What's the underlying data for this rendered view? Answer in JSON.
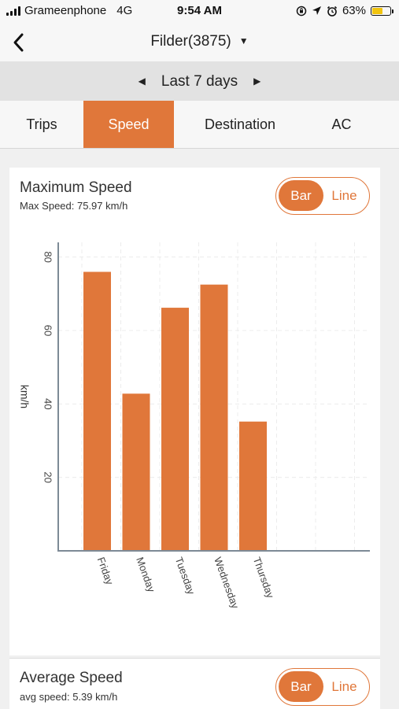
{
  "status": {
    "carrier": "Grameenphone",
    "network": "4G",
    "time": "9:54 AM",
    "battery_text": "63%",
    "battery_level": 0.63,
    "battery_color": "#f1c40f"
  },
  "nav": {
    "back_icon": "chevron-left-icon",
    "title": "Filder(3875)",
    "dropdown_icon": "caret-down-icon"
  },
  "date_range": {
    "label": "Last 7 days",
    "prev_icon": "caret-left-icon",
    "next_icon": "caret-right-icon"
  },
  "tabs": [
    {
      "label": "Trips",
      "active": false
    },
    {
      "label": "Speed",
      "active": true
    },
    {
      "label": "Destination",
      "active": false
    },
    {
      "label": "AC",
      "active": false
    }
  ],
  "accent_color": "#e0773a",
  "max_speed_card": {
    "title": "Maximum Speed",
    "subtitle": "Max Speed: 75.97 km/h",
    "toggle_bar": "Bar",
    "toggle_line": "Line",
    "selected": "Bar"
  },
  "avg_speed_card": {
    "title": "Average Speed",
    "subtitle": "avg speed: 5.39 km/h",
    "toggle_bar": "Bar",
    "toggle_line": "Line",
    "selected": "Bar"
  },
  "chart_data": {
    "type": "bar",
    "categories": [
      "Friday",
      "Monday",
      "Tuesday",
      "Wednesday",
      "Thursday"
    ],
    "values": [
      75.97,
      42.8,
      66.2,
      72.5,
      35.2
    ],
    "ylabel": "km/h",
    "ylim": [
      0,
      84
    ],
    "yticks": [
      20,
      40,
      60,
      80
    ],
    "grid": true,
    "color": "#e0773a"
  }
}
